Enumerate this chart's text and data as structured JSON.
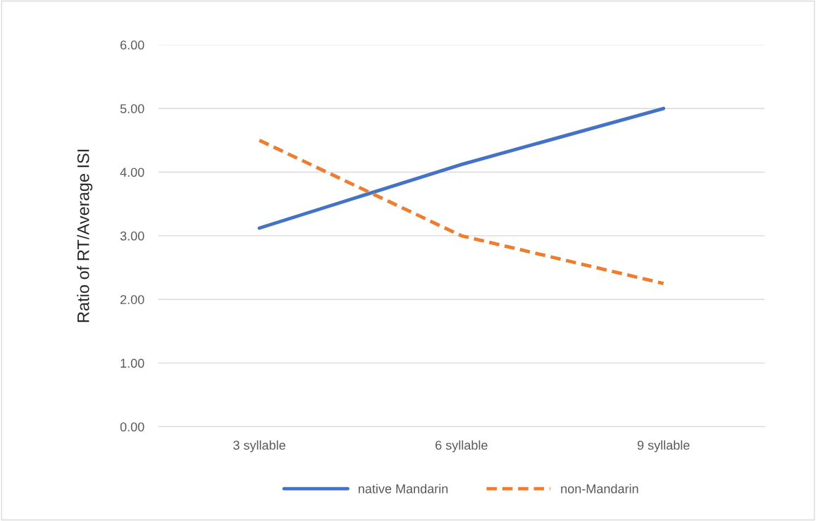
{
  "chart_data": {
    "type": "line",
    "ylabel": "Ratio of RT/Average ISI",
    "categories": [
      "3 syllable",
      "6 syllable",
      "9 syllable"
    ],
    "series": [
      {
        "name": "native Mandarin",
        "color": "#4472c4",
        "values": [
          3.12,
          4.12,
          5.0
        ],
        "line_style": "solid"
      },
      {
        "name": "non-Mandarin",
        "color": "#ed7d31",
        "values": [
          4.5,
          3.0,
          2.25
        ],
        "line_style": "dashed"
      }
    ],
    "ylim": [
      0,
      6
    ],
    "yticks": [
      {
        "value": 0,
        "label": "0.00"
      },
      {
        "value": 1,
        "label": "1.00"
      },
      {
        "value": 2,
        "label": "2.00"
      },
      {
        "value": 3,
        "label": "3.00"
      },
      {
        "value": 4,
        "label": "4.00"
      },
      {
        "value": 5,
        "label": "5.00"
      },
      {
        "value": 6,
        "label": "6.00"
      }
    ],
    "grid": "y",
    "legend": "bottom",
    "marker": "none"
  }
}
